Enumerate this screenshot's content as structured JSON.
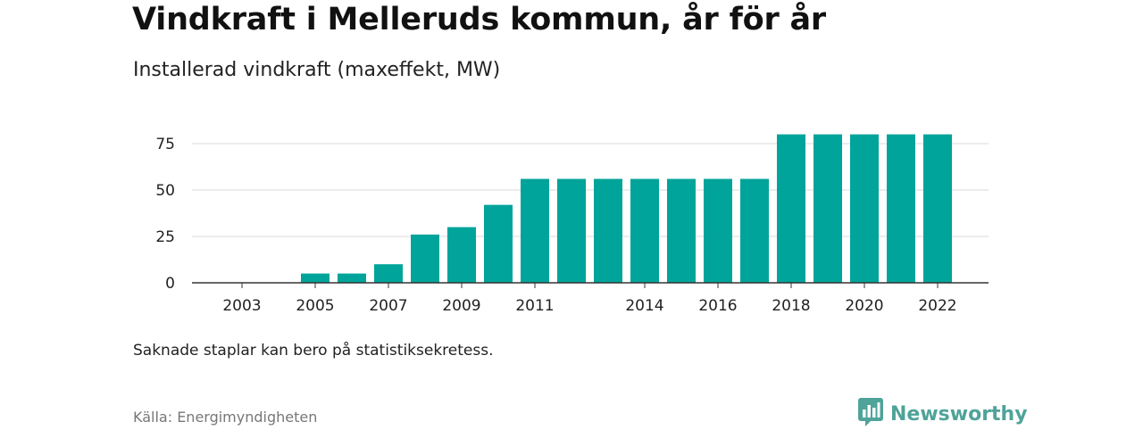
{
  "header": {
    "title": "Vindkraft i Melleruds kommun, år för år",
    "subtitle": "Installerad vindkraft (maxeffekt, MW)"
  },
  "footer": {
    "note": "Saknade staplar kan bero på statistiksekretess.",
    "source": "Källa: Energimyndigheten",
    "brand": "Newsworthy",
    "brand_icon": "bar-chart-logo-icon"
  },
  "colors": {
    "bar": "#00a49a",
    "grid": "#d9d9d9",
    "axis": "#333333",
    "brand": "#4fa39a"
  },
  "chart_data": {
    "type": "bar",
    "categories": [
      "2003",
      "2004",
      "2005",
      "2006",
      "2007",
      "2008",
      "2009",
      "2010",
      "2011",
      "2012",
      "2013",
      "2014",
      "2015",
      "2016",
      "2017",
      "2018",
      "2019",
      "2020",
      "2021",
      "2022"
    ],
    "values": [
      0,
      0,
      5,
      5,
      10,
      26,
      30,
      42,
      56,
      56,
      56,
      56,
      56,
      56,
      56,
      80,
      80,
      80,
      80,
      80
    ],
    "tick_labels": [
      "2003",
      "2005",
      "2007",
      "2009",
      "2011",
      "2014",
      "2016",
      "2018",
      "2020",
      "2022"
    ],
    "y_ticks": [
      0,
      25,
      50,
      75
    ],
    "ylim": [
      0,
      80
    ],
    "grid": true,
    "title": "Vindkraft i Melleruds kommun, år för år",
    "xlabel": "",
    "ylabel": ""
  }
}
